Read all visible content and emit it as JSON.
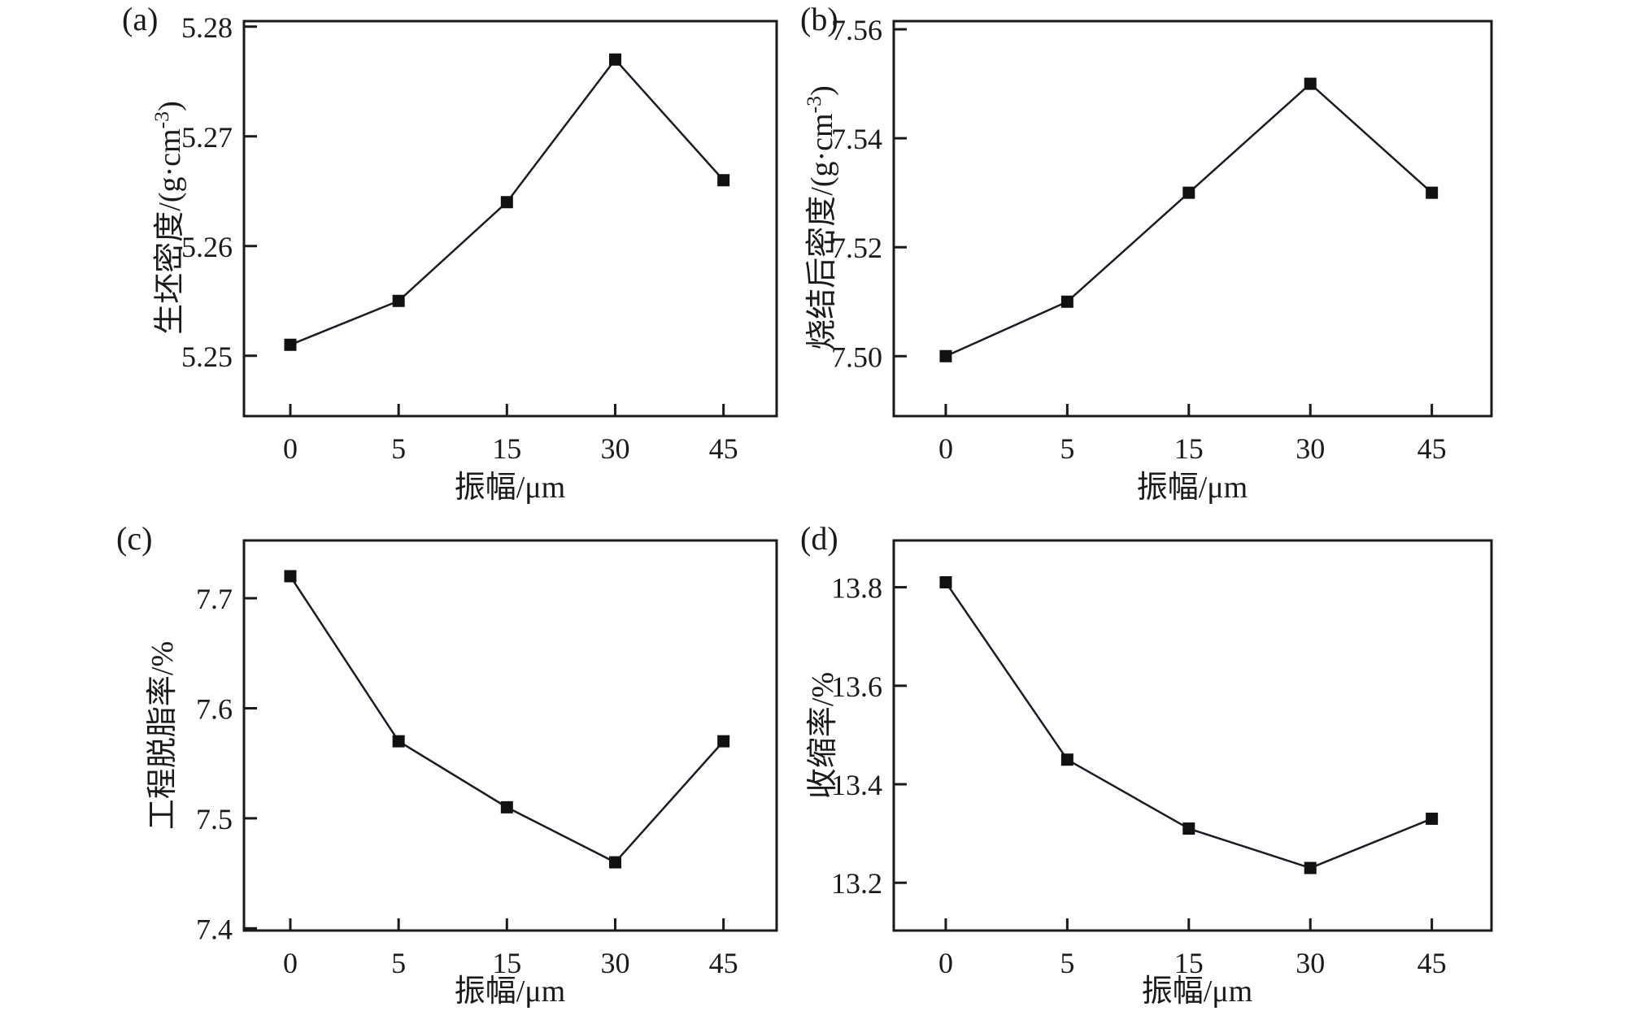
{
  "figure": {
    "background": "#ffffff",
    "axis_color": "#1a1a1a",
    "line_color": "#1b1b28",
    "marker_color": "#111111"
  },
  "chart_data": [
    {
      "panel_label": "(a)",
      "type": "line",
      "marker": "filled-square",
      "grid": false,
      "categories": [
        "0",
        "5",
        "15",
        "30",
        "45"
      ],
      "values": [
        5.251,
        5.255,
        5.264,
        5.277,
        5.266
      ],
      "xlabel": "振幅/μm",
      "ylabel": "生坯密度/(g·cm⁻³)",
      "yticks": [
        "5.25",
        "5.26",
        "5.27",
        "5.28"
      ],
      "ylim": [
        5.2445,
        5.2805
      ]
    },
    {
      "panel_label": "(b)",
      "type": "line",
      "marker": "filled-square",
      "grid": false,
      "categories": [
        "0",
        "5",
        "15",
        "30",
        "45"
      ],
      "values": [
        7.5,
        7.51,
        7.53,
        7.55,
        7.53
      ],
      "xlabel": "振幅/μm",
      "ylabel": "烧结后密度/(g·cm⁻³)",
      "yticks": [
        "7.50",
        "7.52",
        "7.54",
        "7.56"
      ],
      "ylim": [
        7.489,
        7.5615
      ]
    },
    {
      "panel_label": "(c)",
      "type": "line",
      "marker": "filled-square",
      "grid": false,
      "categories": [
        "0",
        "5",
        "15",
        "30",
        "45"
      ],
      "values": [
        7.72,
        7.57,
        7.51,
        7.46,
        7.57
      ],
      "xlabel": "振幅/μm",
      "ylabel": "工程脱脂率/%",
      "yticks": [
        "7.4",
        "7.5",
        "7.6",
        "7.7"
      ],
      "ylim": [
        7.398,
        7.7525
      ]
    },
    {
      "panel_label": "(d)",
      "type": "line",
      "marker": "filled-square",
      "grid": false,
      "categories": [
        "0",
        "5",
        "15",
        "30",
        "45"
      ],
      "values": [
        13.81,
        13.45,
        13.31,
        13.23,
        13.33
      ],
      "xlabel": "振幅/μm",
      "ylabel": "收缩率/%",
      "yticks": [
        "13.2",
        "13.4",
        "13.6",
        "13.8"
      ],
      "ylim": [
        13.103,
        13.895
      ]
    }
  ]
}
